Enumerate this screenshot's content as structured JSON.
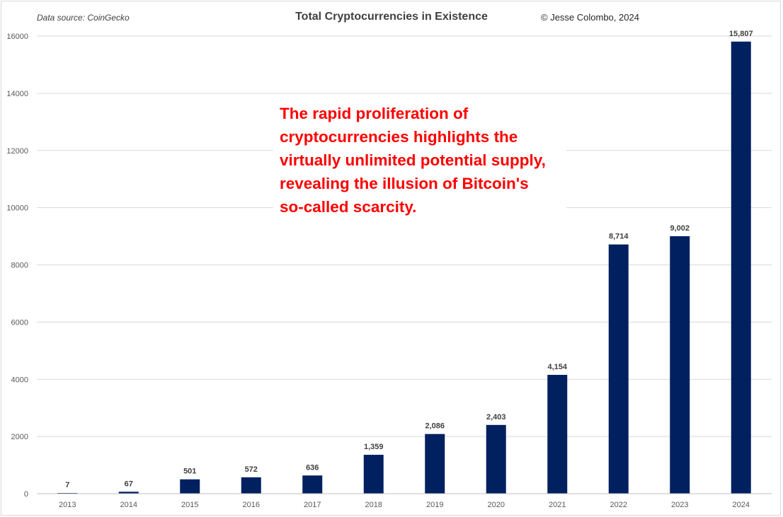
{
  "header": {
    "source": "Data source: CoinGecko",
    "title": "Total Cryptocurrencies in Existence",
    "copyright": "© Jesse Colombo, 2024"
  },
  "annotation": {
    "lines": [
      "The rapid proliferation of",
      "cryptocurrencies highlights the",
      "virtually unlimited potential supply,",
      "revealing the illusion of Bitcoin's",
      "so-called scarcity."
    ],
    "color": "#ff0000"
  },
  "chart_data": {
    "type": "bar",
    "title": "Total Cryptocurrencies in Existence",
    "xlabel": "",
    "ylabel": "",
    "categories": [
      "2013",
      "2014",
      "2015",
      "2016",
      "2017",
      "2018",
      "2019",
      "2020",
      "2021",
      "2022",
      "2023",
      "2024"
    ],
    "values": [
      7,
      67,
      501,
      572,
      636,
      1359,
      2086,
      2403,
      4154,
      8714,
      9002,
      15807
    ],
    "data_labels": [
      "7",
      "67",
      "501",
      "572",
      "636",
      "1,359",
      "2,086",
      "2,403",
      "4,154",
      "8,714",
      "9,002",
      "15,807"
    ],
    "ylim": [
      0,
      16000
    ],
    "yticks": [
      0,
      2000,
      4000,
      6000,
      8000,
      10000,
      12000,
      14000,
      16000
    ],
    "ytick_labels": [
      "0",
      "2000",
      "4000",
      "6000",
      "8000",
      "10000",
      "12000",
      "14000",
      "16000"
    ],
    "grid": true,
    "bar_color": "#002060",
    "grid_color": "#d9d9d9"
  }
}
